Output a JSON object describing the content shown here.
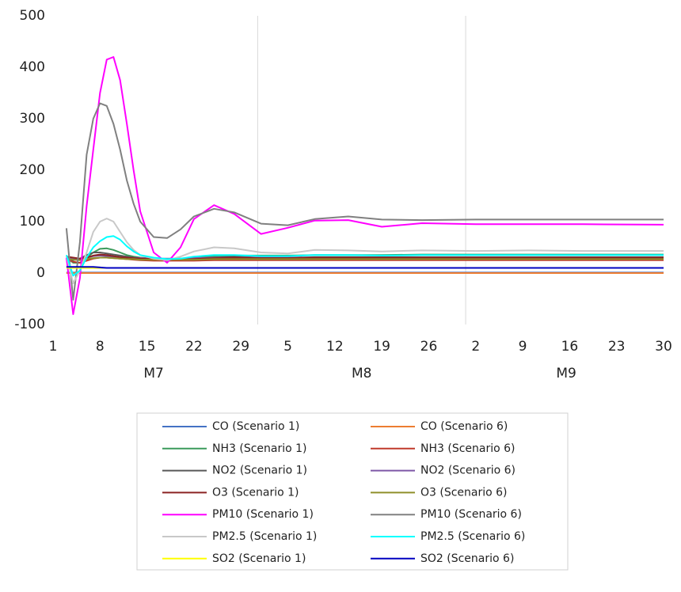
{
  "chart_data": {
    "type": "line",
    "x": [
      3,
      4,
      5,
      6,
      7,
      8,
      9,
      10,
      11,
      12,
      13,
      14,
      16,
      18,
      20,
      22,
      25,
      28,
      32,
      36,
      40,
      45,
      50,
      56,
      64,
      72,
      80,
      92
    ],
    "xlim": [
      1,
      92
    ],
    "xticks": [
      {
        "value": 1,
        "label": "1"
      },
      {
        "value": 8,
        "label": "8"
      },
      {
        "value": 15,
        "label": "15"
      },
      {
        "value": 22,
        "label": "22"
      },
      {
        "value": 29,
        "label": "29"
      },
      {
        "value": 36,
        "label": "5"
      },
      {
        "value": 43,
        "label": "12"
      },
      {
        "value": 50,
        "label": "19"
      },
      {
        "value": 57,
        "label": "26"
      },
      {
        "value": 64,
        "label": "2"
      },
      {
        "value": 71,
        "label": "9"
      },
      {
        "value": 78,
        "label": "16"
      },
      {
        "value": 85,
        "label": "23"
      },
      {
        "value": 92,
        "label": "30"
      }
    ],
    "groups": [
      {
        "label": "M7",
        "range": [
          1,
          31
        ]
      },
      {
        "label": "M8",
        "range": [
          32,
          62
        ]
      },
      {
        "label": "M9",
        "range": [
          63,
          92
        ]
      }
    ],
    "ylim": [
      -100,
      500
    ],
    "yticks": [
      -100,
      0,
      100,
      200,
      300,
      400,
      500
    ],
    "series": [
      {
        "name": "CO (Scenario 1)",
        "color": "#4472c4",
        "values": [
          1,
          1,
          1,
          1,
          1,
          1,
          1,
          1,
          1,
          1,
          1,
          1,
          1,
          1,
          1,
          1,
          1,
          1,
          1,
          1,
          1,
          1,
          1,
          1,
          1,
          1,
          1,
          1
        ]
      },
      {
        "name": "CO (Scenario 6)",
        "color": "#ed7d31",
        "values": [
          0,
          0,
          0,
          0,
          0,
          0,
          0,
          0,
          0,
          0,
          0,
          0,
          0,
          0,
          0,
          0,
          0,
          0,
          0,
          0,
          0,
          0,
          0,
          0,
          0,
          0,
          0,
          0
        ]
      },
      {
        "name": "NH3 (Scenario 1)",
        "color": "#3a9a5b",
        "values": [
          30,
          20,
          20,
          30,
          40,
          47,
          48,
          45,
          40,
          35,
          32,
          30,
          28,
          27,
          28,
          30,
          33,
          34,
          34,
          34,
          35,
          35,
          35,
          36,
          36,
          36,
          36,
          36
        ]
      },
      {
        "name": "NH3 (Scenario 6)",
        "color": "#c0392b",
        "values": [
          28,
          22,
          20,
          24,
          28,
          30,
          30,
          29,
          28,
          27,
          26,
          25,
          24,
          24,
          24,
          24,
          25,
          25,
          25,
          25,
          25,
          25,
          25,
          25,
          25,
          25,
          25,
          25
        ]
      },
      {
        "name": "NO2 (Scenario 1)",
        "color": "#595959",
        "values": [
          30,
          25,
          28,
          35,
          40,
          40,
          38,
          36,
          34,
          32,
          30,
          29,
          28,
          27,
          27,
          28,
          30,
          32,
          30,
          30,
          31,
          31,
          31,
          31,
          31,
          31,
          31,
          31
        ]
      },
      {
        "name": "NO2 (Scenario 6)",
        "color": "#7e57a6",
        "values": [
          30,
          27,
          27,
          30,
          33,
          34,
          33,
          32,
          31,
          30,
          29,
          29,
          28,
          28,
          28,
          29,
          30,
          30,
          30,
          30,
          30,
          30,
          30,
          30,
          30,
          30,
          30,
          30
        ]
      },
      {
        "name": "O3 (Scenario 1)",
        "color": "#8b2323",
        "values": [
          32,
          30,
          28,
          30,
          34,
          36,
          35,
          33,
          31,
          30,
          29,
          28,
          27,
          26,
          26,
          27,
          29,
          30,
          29,
          29,
          30,
          30,
          30,
          30,
          30,
          30,
          30,
          30
        ]
      },
      {
        "name": "O3 (Scenario 6)",
        "color": "#8f8f2a",
        "values": [
          28,
          26,
          25,
          27,
          29,
          30,
          30,
          29,
          28,
          27,
          27,
          26,
          26,
          26,
          26,
          26,
          27,
          27,
          27,
          27,
          27,
          27,
          27,
          27,
          27,
          27,
          27,
          27
        ]
      },
      {
        "name": "PM10 (Scenario 1)",
        "color": "#ff00ff",
        "values": [
          30,
          -80,
          -10,
          130,
          240,
          350,
          415,
          420,
          375,
          290,
          200,
          120,
          40,
          20,
          50,
          105,
          132,
          115,
          76,
          88,
          102,
          103,
          90,
          97,
          95,
          95,
          95,
          94
        ]
      },
      {
        "name": "PM10 (Scenario 6)",
        "color": "#808080",
        "values": [
          87,
          -52,
          60,
          230,
          300,
          330,
          325,
          290,
          240,
          180,
          135,
          100,
          70,
          68,
          85,
          110,
          125,
          118,
          96,
          93,
          105,
          110,
          104,
          103,
          104,
          104,
          104,
          104
        ]
      },
      {
        "name": "PM2.5 (Scenario 1)",
        "color": "#c8c8c8",
        "values": [
          35,
          -20,
          5,
          40,
          80,
          100,
          106,
          100,
          80,
          60,
          45,
          35,
          28,
          25,
          32,
          42,
          50,
          48,
          40,
          38,
          45,
          44,
          42,
          44,
          43,
          44,
          43,
          43
        ]
      },
      {
        "name": "PM2.5 (Scenario 6)",
        "color": "#00ffff",
        "values": [
          35,
          -5,
          5,
          30,
          50,
          62,
          70,
          72,
          65,
          52,
          42,
          35,
          30,
          27,
          28,
          32,
          35,
          35,
          33,
          33,
          35,
          35,
          34,
          35,
          35,
          35,
          35,
          35
        ]
      },
      {
        "name": "SO2 (Scenario 1)",
        "color": "#ffff00",
        "values": [
          10,
          10,
          10,
          10,
          10,
          10,
          10,
          10,
          10,
          10,
          10,
          10,
          10,
          10,
          10,
          10,
          10,
          10,
          10,
          10,
          10,
          10,
          10,
          10,
          10,
          10,
          10,
          10
        ]
      },
      {
        "name": "SO2 (Scenario 6)",
        "color": "#0000c0",
        "values": [
          12,
          12,
          12,
          12,
          12,
          11,
          10,
          10,
          10,
          10,
          10,
          10,
          10,
          10,
          10,
          10,
          10,
          10,
          10,
          10,
          10,
          10,
          10,
          10,
          10,
          10,
          10,
          10
        ]
      }
    ]
  }
}
